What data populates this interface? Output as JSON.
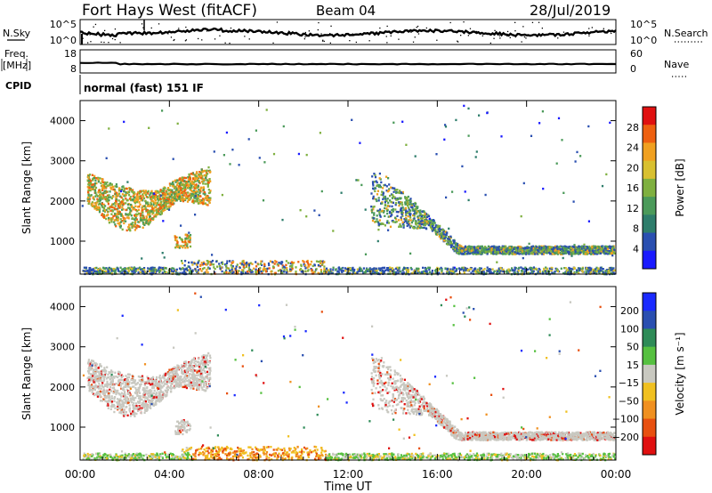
{
  "header": {
    "radar": "Fort Hays West (fitACF)",
    "beam": "Beam 04",
    "date": "28/Jul/2019"
  },
  "panels": {
    "nsky": {
      "left_label": "N.Sky",
      "right_label": "N.Search",
      "left_ticks": [
        "10^5",
        "10^0"
      ],
      "right_ticks": [
        "10^5",
        "10^0"
      ]
    },
    "freq": {
      "left_label_1": "Freq.",
      "left_label_2": "[MHz]",
      "right_label": "Nave",
      "left_ticks": [
        "18",
        "8"
      ],
      "right_ticks": [
        "60",
        "0"
      ]
    },
    "cpid": {
      "label": "CPID",
      "value": "normal (fast) 151 IF"
    }
  },
  "colors": {
    "power_scale": [
      "#1a1aff",
      "#2a4fb0",
      "#2e7d6b",
      "#4b9a5a",
      "#7fb040",
      "#d8c030",
      "#f0a020",
      "#ee6010",
      "#e01010"
    ],
    "velocity_scale": [
      "#1a2aff",
      "#2a4fb0",
      "#2e8b57",
      "#56c040",
      "#c8c8c0",
      "#f0c020",
      "#f09020",
      "#e85010",
      "#e01010"
    ]
  },
  "chart_data": [
    {
      "type": "heatmap",
      "name": "power",
      "ylabel": "Slant Range [km]",
      "ylim": [
        180,
        4500
      ],
      "yticks": [
        "1000",
        "2000",
        "3000",
        "4000"
      ],
      "colorbar_label": "Power [dB]",
      "colorbar_ticks": [
        "4",
        "8",
        "12",
        "16",
        "20",
        "24",
        "28"
      ],
      "echo_regions": [
        {
          "t0": 0.3,
          "t1": 5.8,
          "r0": 1600,
          "r1": 2800,
          "level": 16
        },
        {
          "t0": 13.0,
          "t1": 23.9,
          "r0": 700,
          "r1": 2800,
          "level": 10
        },
        {
          "t0": 0.0,
          "t1": 24.0,
          "r0": 180,
          "r1": 500,
          "level": 12
        }
      ]
    },
    {
      "type": "heatmap",
      "name": "velocity",
      "ylabel": "Slant Range [km]",
      "ylim": [
        180,
        4500
      ],
      "yticks": [
        "1000",
        "2000",
        "3000",
        "4000"
      ],
      "colorbar_label": "Velocity [m s⁻¹]",
      "colorbar_ticks": [
        "200",
        "100",
        "50",
        "15",
        "−15",
        "−50",
        "−100",
        "−200"
      ],
      "echo_regions": [
        {
          "t0": 0.3,
          "t1": 5.8,
          "r0": 1600,
          "r1": 2800,
          "level": 0
        },
        {
          "t0": 13.0,
          "t1": 23.9,
          "r0": 700,
          "r1": 2800,
          "level": 0
        },
        {
          "t0": 5.0,
          "t1": 10.0,
          "r0": 180,
          "r1": 600,
          "level": -80
        }
      ]
    }
  ],
  "xaxis": {
    "label": "Time UT",
    "ticks": [
      "00:00",
      "04:00",
      "08:00",
      "12:00",
      "16:00",
      "20:00",
      "00:00"
    ]
  }
}
